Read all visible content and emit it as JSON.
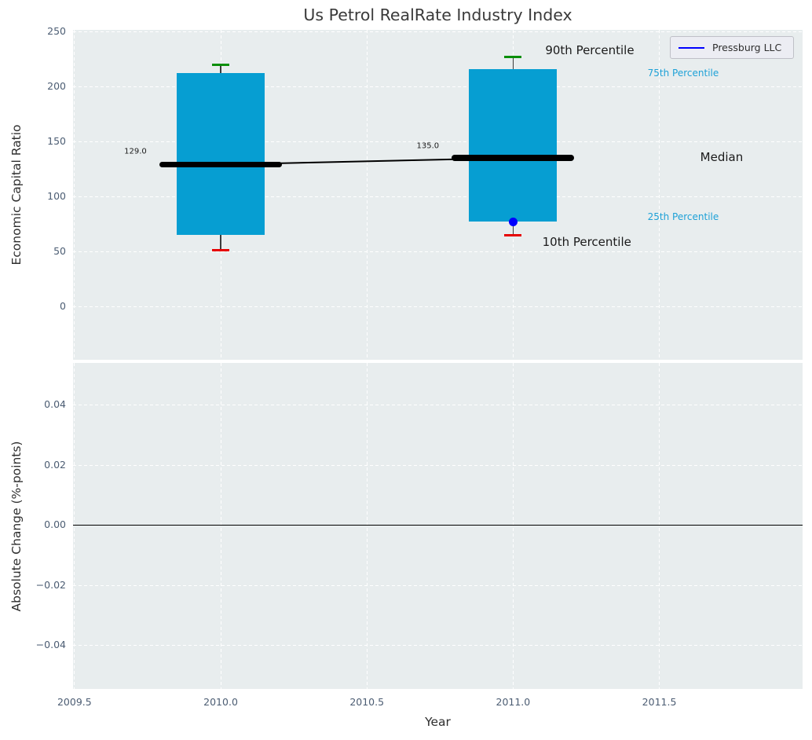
{
  "chart_data": {
    "type": "box",
    "title": "Us Petrol RealRate Industry Index",
    "xlabel": "Year",
    "legend": {
      "label": "Pressburg LLC",
      "position": "upper right"
    },
    "grid": true,
    "xlim": [
      2009.495,
      2011.99
    ],
    "xticks": [
      {
        "value": 2009.5,
        "label": "2009.5"
      },
      {
        "value": 2010.0,
        "label": "2010.0"
      },
      {
        "value": 2010.5,
        "label": "2010.5"
      },
      {
        "value": 2011.0,
        "label": "2011.0"
      },
      {
        "value": 2011.5,
        "label": "2011.5"
      }
    ],
    "top_panel": {
      "ylabel": "Economic Capital Ratio",
      "ylim": [
        -48.5,
        251.5
      ],
      "yticks": [
        {
          "value": 250,
          "label": "250"
        },
        {
          "value": 200,
          "label": "200"
        },
        {
          "value": 150,
          "label": "150"
        },
        {
          "value": 100,
          "label": "100"
        },
        {
          "value": 50,
          "label": "50"
        },
        {
          "value": 0,
          "label": "0"
        }
      ],
      "boxes": [
        {
          "year": 2010,
          "p10": 51,
          "p25": 65,
          "median": 129,
          "p75": 212,
          "p90": 220
        },
        {
          "year": 2011,
          "p10": 65,
          "p25": 77,
          "median": 135,
          "p75": 216,
          "p90": 227
        }
      ],
      "median_trend": [
        {
          "year": 2010,
          "value": 129
        },
        {
          "year": 2011,
          "value": 135
        }
      ],
      "company_points": [
        {
          "year": 2011,
          "value": 77
        }
      ],
      "annotations": [
        {
          "text": "129.0",
          "x": 2009.67,
          "y": 141,
          "size": 10,
          "color": "#1a1a1a"
        },
        {
          "text": "135.0",
          "x": 2010.67,
          "y": 146,
          "size": 10,
          "color": "#1a1a1a"
        },
        {
          "text": "90th Percentile",
          "x": 2011.11,
          "y": 233,
          "size": 15,
          "color": "#1a1a1a"
        },
        {
          "text": "75th Percentile",
          "x": 2011.46,
          "y": 212,
          "size": 12,
          "color": "#1ea1d7"
        },
        {
          "text": "Median",
          "x": 2011.64,
          "y": 135.5,
          "size": 15,
          "color": "#1a1a1a"
        },
        {
          "text": "25th Percentile",
          "x": 2011.46,
          "y": 81.5,
          "size": 12,
          "color": "#1ea1d7"
        },
        {
          "text": "10th Percentile",
          "x": 2011.1,
          "y": 59,
          "size": 15,
          "color": "#1a1a1a"
        }
      ]
    },
    "bottom_panel": {
      "ylabel": "Absolute Change (%-points)",
      "ylim": [
        -0.0545,
        0.0541
      ],
      "yticks": [
        {
          "value": 0.04,
          "label": "0.04"
        },
        {
          "value": 0.02,
          "label": "0.02"
        },
        {
          "value": 0.0,
          "label": "0.00"
        },
        {
          "value": -0.02,
          "label": "−0.02"
        },
        {
          "value": -0.04,
          "label": "−0.04"
        }
      ],
      "zero_line": 0.0
    },
    "colors": {
      "box_fill": "#069ed2",
      "whisker": "#3c3c3c",
      "cap_top": "#0a8f0a",
      "cap_bottom": "#e60000",
      "median": "#000000",
      "company": "#0000ff",
      "axes_background": "#e8edee",
      "grid": "#ffffff",
      "tick_label": "#4c5d73",
      "percentile_label": "#1ea1d7",
      "zero_line": "#000000"
    }
  }
}
